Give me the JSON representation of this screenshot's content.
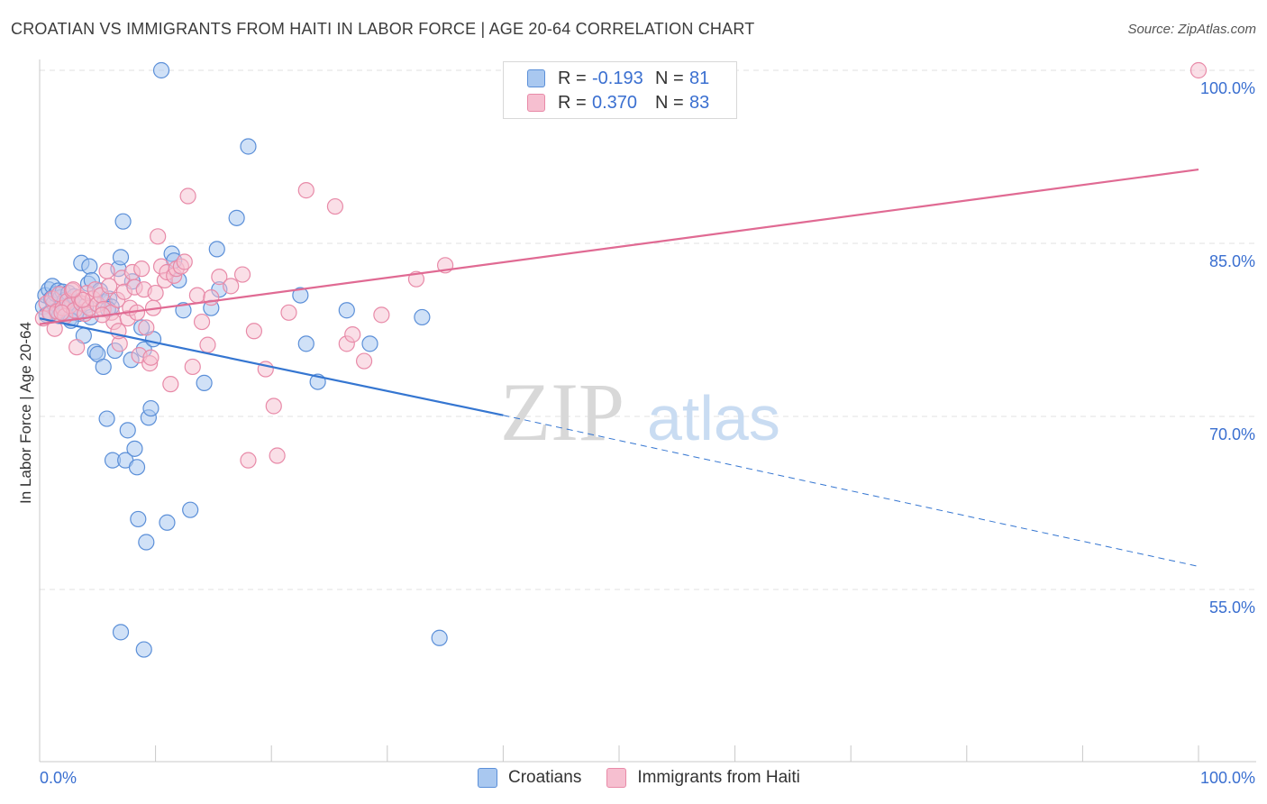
{
  "header": {
    "title": "CROATIAN VS IMMIGRANTS FROM HAITI IN LABOR FORCE | AGE 20-64 CORRELATION CHART",
    "source": "Source: ZipAtlas.com"
  },
  "legend": {
    "r_label": "R =",
    "n_label": "N =",
    "croatians": {
      "r": "-0.193",
      "n": "81"
    },
    "haiti": {
      "r": "0.370",
      "n": "83"
    }
  },
  "bottom_legend": {
    "croatians": "Croatians",
    "haiti": "Immigrants from Haiti"
  },
  "watermark": {
    "zip": "ZIP",
    "atlas": "atlas"
  },
  "colors": {
    "blue_fill": "#a9c8f0",
    "blue_stroke": "#5b8fd8",
    "blue_line": "#3576d1",
    "pink_fill": "#f6bfd0",
    "pink_stroke": "#e88aa8",
    "pink_line": "#e06a93",
    "axis_text": "#3a6fd0",
    "grid": "#e2e2e2"
  },
  "chart_data": {
    "type": "scatter",
    "title": "CROATIAN VS IMMIGRANTS FROM HAITI IN LABOR FORCE | AGE 20-64 CORRELATION CHART",
    "xlabel": "",
    "ylabel": "In Labor Force | Age 20-64",
    "xlim": [
      0,
      100
    ],
    "ylim": [
      40,
      100
    ],
    "x_tick_labels": [
      "0.0%",
      "100.0%"
    ],
    "y_ticks": [
      55,
      70,
      85,
      100
    ],
    "y_tick_labels": [
      "55.0%",
      "70.0%",
      "85.0%",
      "100.0%"
    ],
    "series": [
      {
        "name": "Croatians",
        "r": -0.193,
        "n": 81,
        "trend": {
          "x0": 0,
          "y0": 78.5,
          "x1": 40,
          "y1": 70.1,
          "dashed_to_x": 100,
          "dashed_to_y": 57.0
        },
        "points": [
          [
            0.3,
            79.5
          ],
          [
            0.5,
            80.5
          ],
          [
            0.6,
            78.8
          ],
          [
            0.8,
            81.0
          ],
          [
            0.9,
            79.0
          ],
          [
            1.0,
            80.2
          ],
          [
            1.1,
            81.3
          ],
          [
            1.2,
            79.8
          ],
          [
            1.4,
            80.6
          ],
          [
            1.5,
            79.2
          ],
          [
            1.6,
            80.9
          ],
          [
            1.7,
            78.7
          ],
          [
            1.8,
            80.3
          ],
          [
            1.9,
            79.6
          ],
          [
            2.0,
            80.8
          ],
          [
            2.1,
            79.0
          ],
          [
            2.2,
            80.1
          ],
          [
            2.3,
            79.4
          ],
          [
            2.5,
            80.7
          ],
          [
            2.6,
            78.5
          ],
          [
            2.8,
            79.9
          ],
          [
            3.0,
            80.4
          ],
          [
            3.2,
            79.1
          ],
          [
            3.4,
            78.9
          ],
          [
            3.6,
            83.3
          ],
          [
            3.8,
            77.0
          ],
          [
            4.0,
            79.6
          ],
          [
            4.2,
            81.5
          ],
          [
            4.3,
            83.0
          ],
          [
            4.5,
            81.8
          ],
          [
            4.8,
            75.6
          ],
          [
            5.0,
            75.4
          ],
          [
            5.2,
            80.9
          ],
          [
            5.5,
            74.3
          ],
          [
            5.6,
            79.9
          ],
          [
            5.8,
            69.8
          ],
          [
            6.0,
            80.2
          ],
          [
            6.2,
            79.5
          ],
          [
            6.3,
            66.2
          ],
          [
            6.5,
            75.7
          ],
          [
            6.8,
            82.8
          ],
          [
            7.0,
            83.8
          ],
          [
            7.2,
            86.9
          ],
          [
            7.4,
            66.2
          ],
          [
            7.6,
            68.8
          ],
          [
            7.9,
            74.9
          ],
          [
            8.0,
            81.7
          ],
          [
            8.2,
            67.2
          ],
          [
            8.4,
            65.6
          ],
          [
            8.5,
            61.1
          ],
          [
            8.8,
            77.7
          ],
          [
            9.0,
            75.8
          ],
          [
            9.2,
            59.1
          ],
          [
            9.4,
            69.9
          ],
          [
            9.6,
            70.7
          ],
          [
            9.8,
            76.7
          ],
          [
            10.5,
            100.0
          ],
          [
            11.0,
            60.8
          ],
          [
            11.4,
            84.1
          ],
          [
            11.6,
            83.5
          ],
          [
            12.0,
            81.8
          ],
          [
            12.4,
            79.2
          ],
          [
            13.0,
            61.9
          ],
          [
            14.2,
            72.9
          ],
          [
            14.8,
            79.4
          ],
          [
            15.3,
            84.5
          ],
          [
            15.5,
            81.0
          ],
          [
            18.0,
            93.4
          ],
          [
            17.0,
            87.2
          ],
          [
            9.0,
            49.8
          ],
          [
            7.0,
            51.3
          ],
          [
            22.5,
            80.5
          ],
          [
            23.0,
            76.3
          ],
          [
            24.0,
            73.0
          ],
          [
            26.5,
            79.2
          ],
          [
            28.5,
            76.3
          ],
          [
            33.0,
            78.6
          ],
          [
            34.5,
            50.8
          ],
          [
            5.9,
            79.3
          ],
          [
            4.4,
            78.6
          ],
          [
            2.7,
            78.3
          ]
        ]
      },
      {
        "name": "Immigrants from Haiti",
        "r": 0.37,
        "n": 83,
        "trend": {
          "x0": 0,
          "y0": 78.0,
          "x1": 100,
          "y1": 91.4
        },
        "points": [
          [
            0.3,
            78.5
          ],
          [
            0.6,
            79.8
          ],
          [
            0.9,
            78.9
          ],
          [
            1.1,
            80.2
          ],
          [
            1.3,
            77.6
          ],
          [
            1.5,
            79.1
          ],
          [
            1.7,
            80.6
          ],
          [
            2.0,
            79.4
          ],
          [
            2.2,
            78.7
          ],
          [
            2.4,
            80.0
          ],
          [
            2.6,
            79.6
          ],
          [
            2.8,
            80.9
          ],
          [
            3.0,
            79.2
          ],
          [
            3.2,
            76.0
          ],
          [
            3.4,
            80.3
          ],
          [
            3.6,
            79.8
          ],
          [
            3.9,
            78.9
          ],
          [
            4.1,
            80.7
          ],
          [
            4.3,
            79.4
          ],
          [
            4.6,
            80.2
          ],
          [
            4.8,
            81.0
          ],
          [
            5.0,
            79.7
          ],
          [
            5.3,
            80.5
          ],
          [
            5.5,
            79.3
          ],
          [
            5.8,
            82.6
          ],
          [
            6.0,
            81.3
          ],
          [
            6.2,
            79.0
          ],
          [
            6.4,
            78.2
          ],
          [
            6.7,
            80.1
          ],
          [
            6.9,
            76.3
          ],
          [
            7.1,
            82.0
          ],
          [
            7.3,
            80.8
          ],
          [
            7.6,
            78.5
          ],
          [
            7.8,
            79.4
          ],
          [
            8.0,
            82.5
          ],
          [
            8.2,
            81.2
          ],
          [
            8.4,
            79.0
          ],
          [
            8.6,
            75.3
          ],
          [
            8.8,
            82.8
          ],
          [
            9.0,
            81.0
          ],
          [
            9.2,
            77.7
          ],
          [
            9.5,
            74.6
          ],
          [
            9.8,
            79.4
          ],
          [
            10.0,
            80.7
          ],
          [
            10.2,
            85.6
          ],
          [
            10.5,
            83.0
          ],
          [
            10.8,
            81.8
          ],
          [
            11.0,
            82.5
          ],
          [
            11.3,
            72.8
          ],
          [
            11.6,
            82.2
          ],
          [
            11.8,
            82.8
          ],
          [
            12.2,
            83.0
          ],
          [
            12.5,
            83.4
          ],
          [
            12.8,
            89.1
          ],
          [
            13.2,
            74.3
          ],
          [
            13.6,
            80.5
          ],
          [
            14.0,
            78.2
          ],
          [
            14.5,
            76.2
          ],
          [
            14.8,
            80.3
          ],
          [
            15.5,
            82.1
          ],
          [
            16.5,
            81.3
          ],
          [
            17.5,
            82.3
          ],
          [
            18.5,
            77.4
          ],
          [
            19.5,
            74.1
          ],
          [
            20.2,
            70.9
          ],
          [
            20.5,
            66.6
          ],
          [
            21.5,
            79.0
          ],
          [
            23.0,
            89.6
          ],
          [
            25.5,
            88.2
          ],
          [
            26.5,
            76.3
          ],
          [
            27.0,
            77.1
          ],
          [
            28.0,
            74.8
          ],
          [
            29.5,
            78.8
          ],
          [
            32.5,
            81.9
          ],
          [
            35.0,
            83.1
          ],
          [
            18.0,
            66.2
          ],
          [
            100.0,
            100.0
          ],
          [
            9.6,
            75.1
          ],
          [
            6.8,
            77.4
          ],
          [
            5.4,
            78.8
          ],
          [
            3.7,
            80.1
          ],
          [
            1.9,
            79.0
          ],
          [
            2.9,
            81.0
          ]
        ]
      }
    ]
  }
}
